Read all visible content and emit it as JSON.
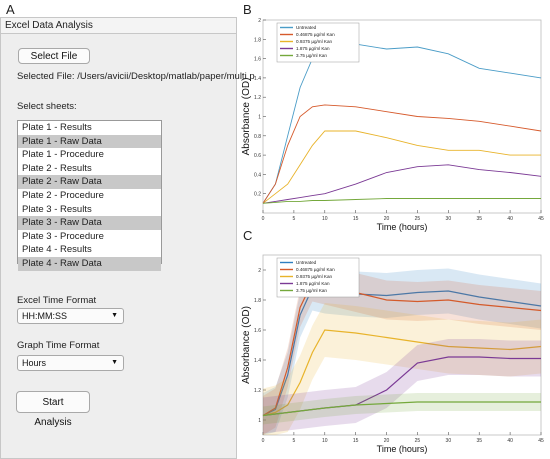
{
  "panel_labels": {
    "a": "A",
    "b": "B",
    "c": "C"
  },
  "app": {
    "title": "Excel Data Analysis",
    "select_file_label": "Select File",
    "selected_file_text": "Selected File: /Users/avicii/Desktop/matlab/paper/multi p",
    "select_sheets_label": "Select sheets:",
    "sheets": [
      {
        "label": "Plate 1 - Results",
        "selected": false
      },
      {
        "label": "Plate 1 - Raw Data",
        "selected": true
      },
      {
        "label": "Plate 1 - Procedure",
        "selected": false
      },
      {
        "label": "Plate 2 - Results",
        "selected": false
      },
      {
        "label": "Plate 2 - Raw Data",
        "selected": true
      },
      {
        "label": "Plate 2 - Procedure",
        "selected": false
      },
      {
        "label": "Plate 3 - Results",
        "selected": false
      },
      {
        "label": "Plate 3 - Raw Data",
        "selected": true
      },
      {
        "label": "Plate 3 - Procedure",
        "selected": false
      },
      {
        "label": "Plate 4 - Results",
        "selected": false
      },
      {
        "label": "Plate 4 - Raw Data",
        "selected": true
      }
    ],
    "excel_time_format_label": "Excel Time Format",
    "excel_time_format_value": "HH:MM:SS",
    "graph_time_format_label": "Graph Time Format",
    "graph_time_format_value": "Hours",
    "start_label": "Start Analysis",
    "dropdown_icon": "triangle-down-icon"
  },
  "chart_data": [
    {
      "type": "line",
      "panel": "B",
      "xlabel": "Time (hours)",
      "ylabel": "Absorbance (OD)",
      "xlim": [
        0,
        45
      ],
      "ylim": [
        0,
        2.0
      ],
      "xticks": [
        0,
        5,
        10,
        15,
        20,
        25,
        30,
        35,
        40,
        45
      ],
      "yticks": [
        0.2,
        0.4,
        0.6,
        0.8,
        1,
        1.2,
        1.4,
        1.6,
        1.8,
        2
      ],
      "legend_position": "top-left",
      "series": [
        {
          "name": "Untreated",
          "color": "#4a9cc7",
          "x": [
            0,
            2,
            4,
            6,
            8,
            10,
            15,
            20,
            25,
            30,
            35,
            40,
            45
          ],
          "y": [
            0.1,
            0.3,
            0.8,
            1.3,
            1.6,
            1.7,
            1.75,
            1.7,
            1.72,
            1.65,
            1.5,
            1.45,
            1.4
          ]
        },
        {
          "name": "0.46875 µg/ml Kan",
          "color": "#d65a2c",
          "x": [
            0,
            2,
            4,
            6,
            8,
            10,
            15,
            20,
            25,
            30,
            35,
            40,
            45
          ],
          "y": [
            0.1,
            0.3,
            0.7,
            1.0,
            1.1,
            1.12,
            1.1,
            1.05,
            1.0,
            0.98,
            0.95,
            0.9,
            0.85
          ]
        },
        {
          "name": "0.9375 µg/ml Kan",
          "color": "#e8b32a",
          "x": [
            0,
            2,
            4,
            6,
            8,
            10,
            15,
            20,
            25,
            30,
            35,
            40,
            45
          ],
          "y": [
            0.1,
            0.2,
            0.3,
            0.5,
            0.7,
            0.85,
            0.85,
            0.78,
            0.7,
            0.65,
            0.65,
            0.6,
            0.6
          ]
        },
        {
          "name": "1.875 µg/ml Kan",
          "color": "#7b3a95",
          "x": [
            0,
            2,
            4,
            6,
            8,
            10,
            15,
            20,
            25,
            30,
            35,
            40,
            45
          ],
          "y": [
            0.1,
            0.12,
            0.14,
            0.16,
            0.18,
            0.2,
            0.3,
            0.42,
            0.48,
            0.5,
            0.45,
            0.42,
            0.38
          ]
        },
        {
          "name": "3.75 µg/ml Kan",
          "color": "#74a83b",
          "x": [
            0,
            2,
            4,
            6,
            8,
            10,
            15,
            20,
            25,
            30,
            35,
            40,
            45
          ],
          "y": [
            0.1,
            0.11,
            0.12,
            0.12,
            0.13,
            0.13,
            0.14,
            0.15,
            0.15,
            0.15,
            0.15,
            0.15,
            0.15
          ]
        }
      ]
    },
    {
      "type": "line",
      "panel": "C",
      "xlabel": "Time (hours)",
      "ylabel": "Absorbance (OD)",
      "xlim": [
        0,
        45
      ],
      "ylim": [
        0.9,
        2.1
      ],
      "xticks": [
        0,
        5,
        10,
        15,
        20,
        25,
        30,
        35,
        40,
        45
      ],
      "yticks": [
        1,
        1.2,
        1.4,
        1.6,
        1.8,
        2
      ],
      "legend_position": "top-left",
      "series": [
        {
          "name": "Untreated",
          "color": "#2f7fc1",
          "x": [
            0,
            2,
            4,
            6,
            8,
            10,
            15,
            20,
            25,
            30,
            35,
            40,
            45
          ],
          "y": [
            1.03,
            1.07,
            1.3,
            1.7,
            1.88,
            1.86,
            1.84,
            1.83,
            1.85,
            1.86,
            1.82,
            1.79,
            1.76
          ]
        },
        {
          "name": "0.46875 µg/ml Kan",
          "color": "#d45a2a",
          "x": [
            0,
            2,
            4,
            6,
            8,
            10,
            15,
            20,
            25,
            30,
            35,
            40,
            45
          ],
          "y": [
            1.03,
            1.08,
            1.35,
            1.75,
            1.92,
            1.9,
            1.85,
            1.8,
            1.79,
            1.8,
            1.77,
            1.75,
            1.73
          ]
        },
        {
          "name": "0.9375 µg/ml Kan",
          "color": "#e8b32a",
          "x": [
            0,
            2,
            4,
            6,
            8,
            10,
            15,
            20,
            25,
            30,
            35,
            40,
            45
          ],
          "y": [
            1.03,
            1.05,
            1.1,
            1.25,
            1.45,
            1.6,
            1.58,
            1.55,
            1.52,
            1.49,
            1.48,
            1.47,
            1.49
          ]
        },
        {
          "name": "1.875 µg/ml Kan",
          "color": "#7b3a95",
          "x": [
            0,
            2,
            4,
            6,
            8,
            10,
            15,
            20,
            25,
            30,
            35,
            40,
            45
          ],
          "y": [
            1.03,
            1.04,
            1.05,
            1.06,
            1.07,
            1.08,
            1.1,
            1.2,
            1.38,
            1.42,
            1.42,
            1.41,
            1.41
          ]
        },
        {
          "name": "3.75 µg/ml Kan",
          "color": "#74a83b",
          "x": [
            0,
            2,
            4,
            6,
            8,
            10,
            15,
            20,
            25,
            30,
            35,
            40,
            45
          ],
          "y": [
            1.03,
            1.04,
            1.05,
            1.06,
            1.07,
            1.08,
            1.1,
            1.11,
            1.12,
            1.12,
            1.12,
            1.12,
            1.12
          ]
        }
      ]
    }
  ]
}
